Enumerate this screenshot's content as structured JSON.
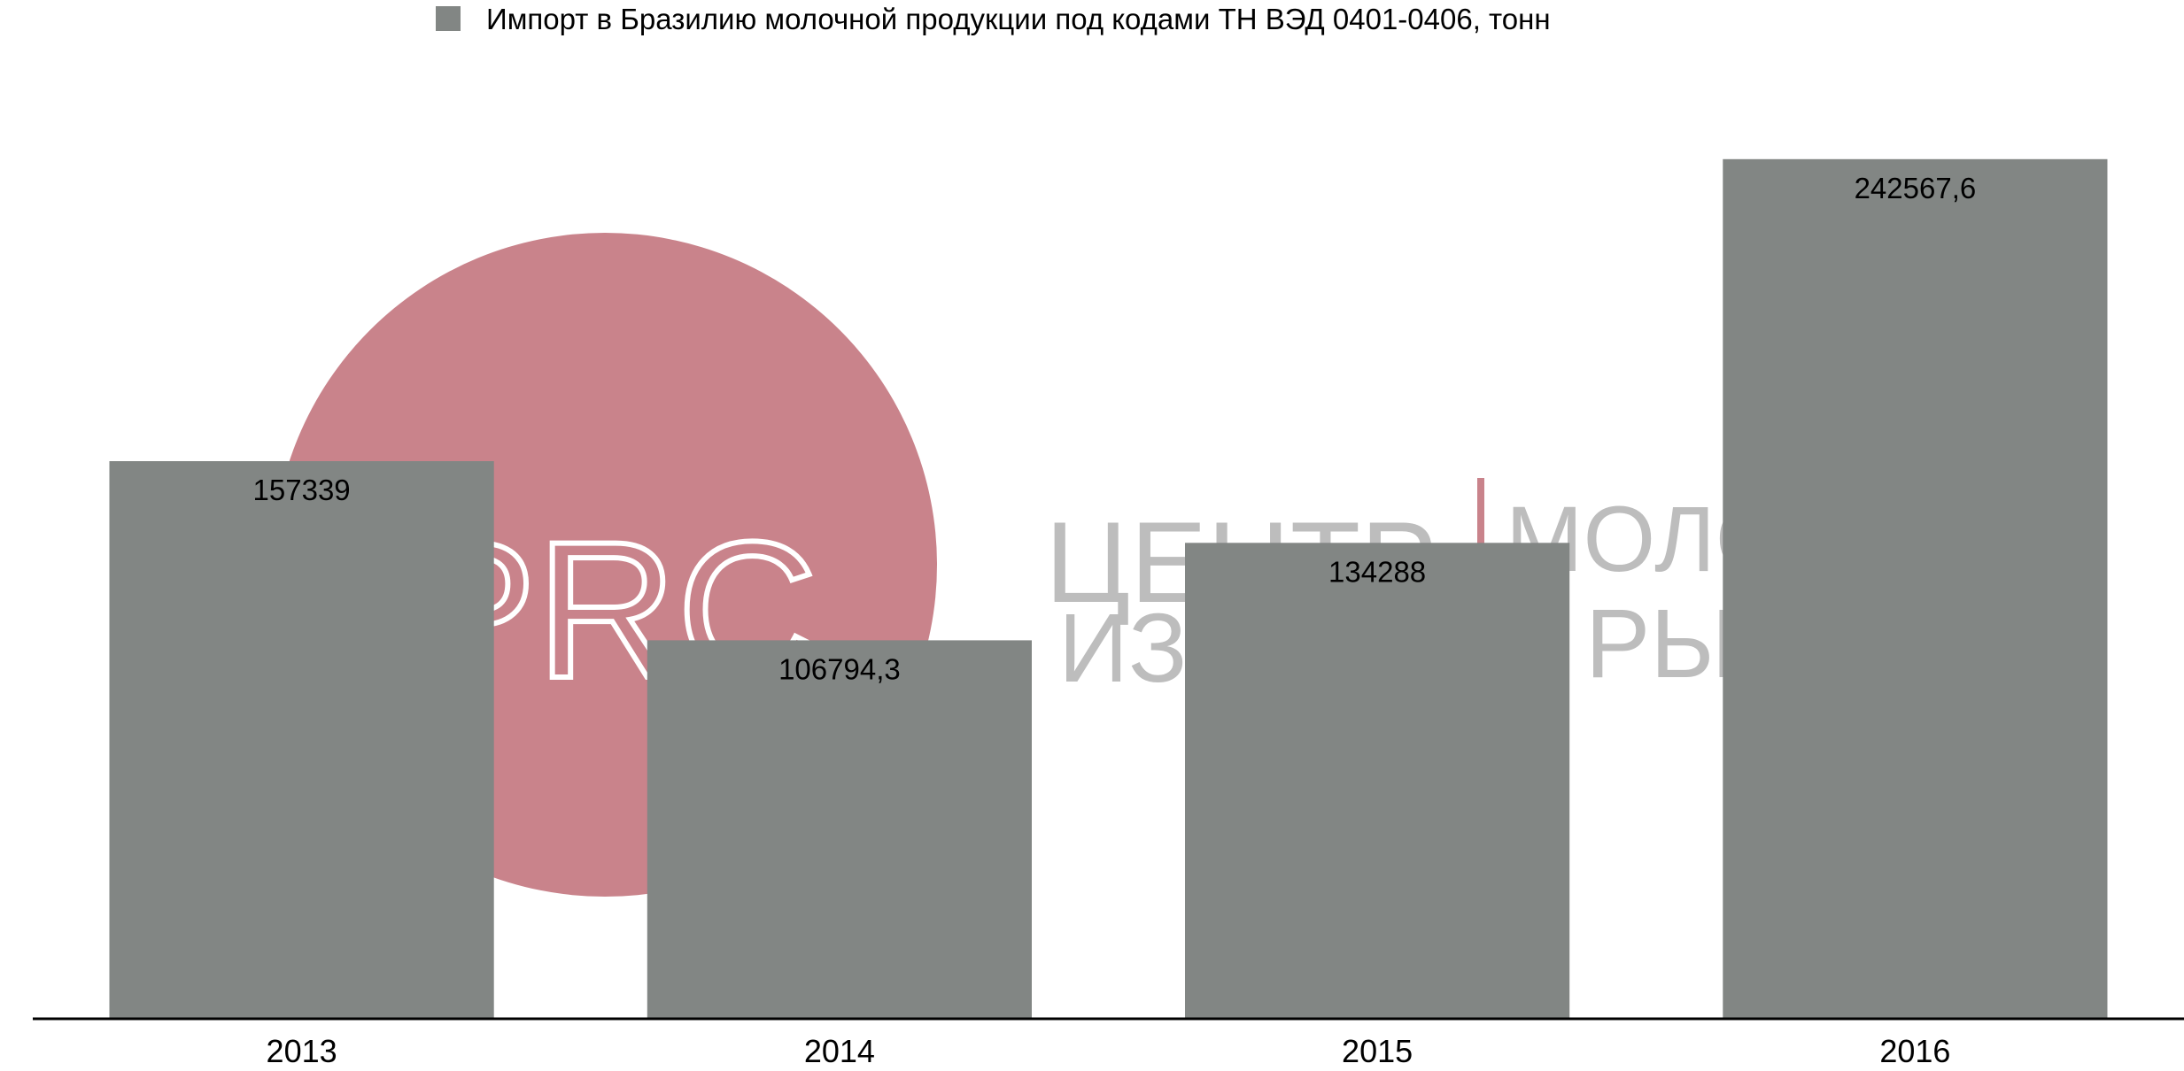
{
  "colors": {
    "bar": "#828684",
    "legend_swatch": "#828684",
    "axis": "#000000",
    "watermark_circle": "#c9838b",
    "watermark_text": "#bdbdbd",
    "watermark_divider": "#c9838b"
  },
  "watermark": {
    "logo_text": "DPRC",
    "line1_left": "ЦЕНТР",
    "line1_right": "МОЛО",
    "line2_left": "ИЗУ",
    "line2_right": "РЫН"
  },
  "chart_data": {
    "type": "bar",
    "legend_position": "top-center",
    "grid": false,
    "categories": [
      "2013",
      "2014",
      "2015",
      "2016"
    ],
    "series": [
      {
        "name": "Импорт в Бразилию молочной продукции под кодами ТН ВЭД 0401-0406, тонн",
        "values": [
          157339,
          106794.3,
          134288,
          242567.6
        ],
        "labels": [
          "157339",
          "106794,3",
          "134288",
          "242567,6"
        ]
      }
    ],
    "ylim": [
      0,
      260000
    ]
  }
}
